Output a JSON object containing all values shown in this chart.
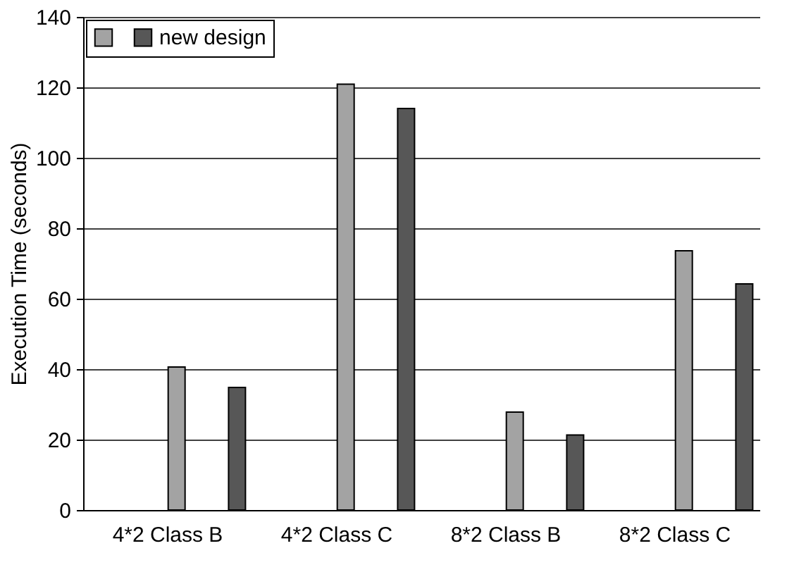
{
  "chart_data": {
    "type": "bar",
    "ylabel": "Execution Time (seconds)",
    "categories": [
      "4*2 Class B",
      "4*2 Class C",
      "8*2 Class B",
      "8*2 Class C"
    ],
    "series": [
      {
        "color": "#a3a3a3",
        "values": [
          40.6,
          120.9,
          27.8,
          73.6
        ]
      },
      {
        "name": "new design",
        "color": "#575757",
        "values": [
          34.8,
          114.0,
          21.3,
          64.2
        ]
      }
    ],
    "ylim": [
      0,
      140
    ],
    "yticks": [
      0,
      20,
      40,
      60,
      80,
      100,
      120,
      140
    ],
    "grid": "y",
    "legend": "top left"
  }
}
